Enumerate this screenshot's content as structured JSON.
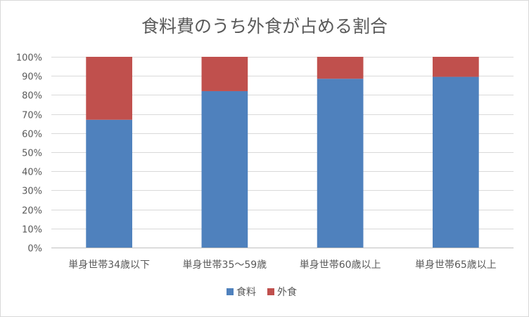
{
  "chart_data": {
    "type": "bar",
    "stacked": true,
    "percent_stacked": true,
    "title": "食料費のうち外食が占める割合",
    "categories": [
      "単身世帯34歳以下",
      "単身世帯35～59歳",
      "単身世帯60歳以上",
      "単身世帯65歳以上"
    ],
    "series": [
      {
        "name": "食料",
        "color": "#4F81BD",
        "values": [
          67,
          82,
          88.5,
          89.5
        ]
      },
      {
        "name": "外食",
        "color": "#C0504D",
        "values": [
          33,
          18,
          11.5,
          10.5
        ]
      }
    ],
    "ylim": [
      0,
      100
    ],
    "yticks": [
      "0%",
      "10%",
      "20%",
      "30%",
      "40%",
      "50%",
      "60%",
      "70%",
      "80%",
      "90%",
      "100%"
    ],
    "grid": true,
    "legend_position": "bottom"
  }
}
